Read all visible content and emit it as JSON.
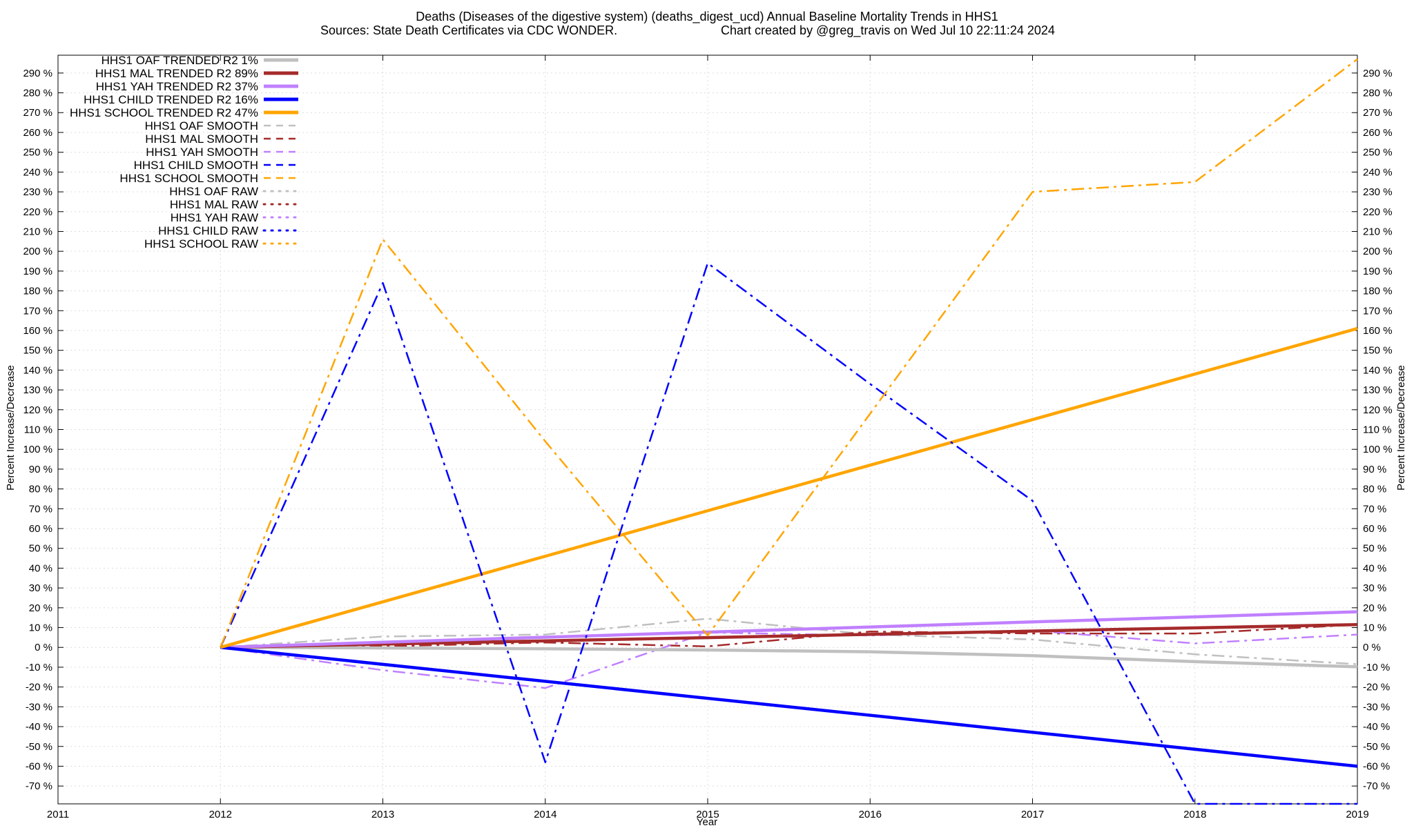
{
  "chart_data": {
    "type": "line",
    "title_line1": "Deaths (Diseases of the digestive system) (deaths_digest_ucd)  Annual Baseline Mortality Trends in HHS1",
    "title_line2_left": "Sources: State Death Certificates via CDC WONDER.",
    "title_line2_right": "Chart created by @greg_travis on Wed Jul 10 22:11:24 2024",
    "xlabel": "Year",
    "ylabel_left": "Percent Increase/Decrease",
    "ylabel_right": "Percent Increase/Decrease",
    "xlim": [
      2011,
      2019
    ],
    "ylim": [
      -79,
      299
    ],
    "x_ticks": [
      "2011",
      "2012",
      "2013",
      "2014",
      "2015",
      "2016",
      "2017",
      "2018",
      "2019"
    ],
    "y_ticks": [
      "-70 %",
      "-60 %",
      "-50 %",
      "-40 %",
      "-30 %",
      "-20 %",
      "-10 %",
      "0 %",
      "10 %",
      "20 %",
      "30 %",
      "40 %",
      "50 %",
      "60 %",
      "70 %",
      "80 %",
      "90 %",
      "100 %",
      "110 %",
      "120 %",
      "130 %",
      "140 %",
      "150 %",
      "160 %",
      "170 %",
      "180 %",
      "190 %",
      "200 %",
      "210 %",
      "220 %",
      "230 %",
      "240 %",
      "250 %",
      "260 %",
      "270 %",
      "280 %",
      "290 %"
    ],
    "grid": true,
    "legend_position": "top-left",
    "legend": [
      {
        "label": "HHS1 OAF TRENDED R2",
        "r2": "1%",
        "color": "#c0c0c0",
        "style": "solid"
      },
      {
        "label": "HHS1 MAL TRENDED R2",
        "r2": "89%",
        "color": "#a52a2a",
        "style": "solid"
      },
      {
        "label": "HHS1 YAH TRENDED R2",
        "r2": "37%",
        "color": "#c080ff",
        "style": "solid"
      },
      {
        "label": "HHS1 CHILD TRENDED R2",
        "r2": "16%",
        "color": "#0000ff",
        "style": "solid"
      },
      {
        "label": "HHS1 SCHOOL TRENDED R2",
        "r2": "47%",
        "color": "#ffa500",
        "style": "solid"
      },
      {
        "label": "HHS1 OAF SMOOTH",
        "r2": "",
        "color": "#c0c0c0",
        "style": "dash"
      },
      {
        "label": "HHS1 MAL SMOOTH",
        "r2": "",
        "color": "#a52a2a",
        "style": "dash"
      },
      {
        "label": "HHS1 YAH SMOOTH",
        "r2": "",
        "color": "#c080ff",
        "style": "dash"
      },
      {
        "label": "HHS1 CHILD SMOOTH",
        "r2": "",
        "color": "#0000ff",
        "style": "dash"
      },
      {
        "label": "HHS1 SCHOOL SMOOTH",
        "r2": "",
        "color": "#ffa500",
        "style": "dash"
      },
      {
        "label": "HHS1 OAF RAW",
        "r2": "",
        "color": "#c0c0c0",
        "style": "dot"
      },
      {
        "label": "HHS1 MAL RAW",
        "r2": "",
        "color": "#a52a2a",
        "style": "dot"
      },
      {
        "label": "HHS1 YAH RAW",
        "r2": "",
        "color": "#c080ff",
        "style": "dot"
      },
      {
        "label": "HHS1 CHILD RAW",
        "r2": "",
        "color": "#0000ff",
        "style": "dot"
      },
      {
        "label": "HHS1 SCHOOL RAW",
        "r2": "",
        "color": "#ffa500",
        "style": "dot"
      }
    ],
    "series": [
      {
        "name": "HHS1 OAF TRENDED R2",
        "color": "#c0c0c0",
        "style": "trend",
        "x": [
          2012,
          2013,
          2014,
          2015,
          2016,
          2017,
          2018,
          2019
        ],
        "values": [
          0,
          -0.3,
          -0.7,
          -1.3,
          -2.2,
          -4.2,
          -7.2,
          -9.8
        ]
      },
      {
        "name": "HHS1 MAL TRENDED R2",
        "color": "#a52a2a",
        "style": "trend",
        "x": [
          2012,
          2019
        ],
        "values": [
          0,
          11.5
        ]
      },
      {
        "name": "HHS1 YAH TRENDED R2",
        "color": "#c080ff",
        "style": "trend",
        "x": [
          2012,
          2019
        ],
        "values": [
          0,
          18
        ]
      },
      {
        "name": "HHS1 CHILD TRENDED R2",
        "color": "#0000ff",
        "style": "trend",
        "x": [
          2012,
          2019
        ],
        "values": [
          0,
          -60
        ]
      },
      {
        "name": "HHS1 SCHOOL TRENDED R2",
        "color": "#ffa500",
        "style": "trend",
        "x": [
          2012,
          2019
        ],
        "values": [
          0,
          161
        ]
      },
      {
        "name": "HHS1 OAF SMOOTH",
        "color": "#c0c0c0",
        "style": "dashdot",
        "x": [
          2012,
          2013,
          2014,
          2015,
          2016,
          2017,
          2018,
          2019
        ],
        "values": [
          0,
          5.5,
          6.5,
          14.5,
          6.5,
          4,
          -3.5,
          -8.5
        ]
      },
      {
        "name": "HHS1 MAL SMOOTH",
        "color": "#a52a2a",
        "style": "dashdot",
        "x": [
          2012,
          2013,
          2014,
          2015,
          2016,
          2017,
          2018,
          2019
        ],
        "values": [
          0,
          0.5,
          2.5,
          0.5,
          8,
          7,
          7,
          11.5
        ]
      },
      {
        "name": "HHS1 YAH SMOOTH",
        "color": "#c080ff",
        "style": "dashdot",
        "x": [
          2012,
          2013,
          2014,
          2015,
          2016,
          2017,
          2018,
          2019
        ],
        "values": [
          0,
          -11.5,
          -20.5,
          7.5,
          6,
          8.5,
          2,
          6.5
        ]
      },
      {
        "name": "HHS1 CHILD SMOOTH",
        "color": "#0000ff",
        "style": "dashdot",
        "x": [
          2012,
          2013,
          2014,
          2015,
          2016,
          2017,
          2018,
          2019
        ],
        "values": [
          0,
          184,
          -58,
          194,
          133,
          74,
          -79,
          -79
        ]
      },
      {
        "name": "HHS1 SCHOOL SMOOTH",
        "color": "#ffa500",
        "style": "dashdot",
        "x": [
          2012,
          2013,
          2014,
          2015,
          2016,
          2017,
          2018,
          2019
        ],
        "values": [
          0,
          206,
          104,
          6,
          118,
          230,
          235,
          297
        ]
      }
    ]
  }
}
